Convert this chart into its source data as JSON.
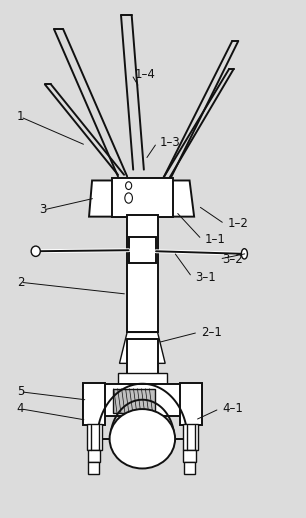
{
  "bg_color": "#dcdcdc",
  "line_color": "#111111",
  "label_fontsize": 8.5
}
